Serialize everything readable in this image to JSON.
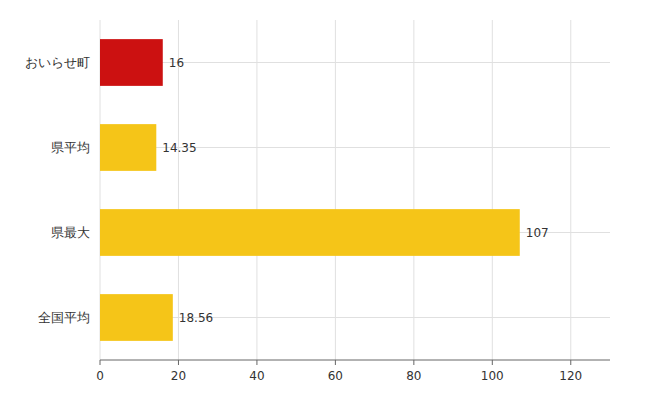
{
  "chart_data": {
    "type": "bar",
    "orientation": "horizontal",
    "categories": [
      "おいらせ町",
      "県平均",
      "県最大",
      "全国平均"
    ],
    "values": [
      16,
      14.35,
      107,
      18.56
    ],
    "colors": [
      "#cc1111",
      "#f5c518",
      "#f5c518",
      "#f5c518"
    ],
    "xlim": [
      0,
      130
    ],
    "xticks": [
      0,
      20,
      40,
      60,
      80,
      100,
      120
    ],
    "grid": true,
    "data_labels": true
  }
}
